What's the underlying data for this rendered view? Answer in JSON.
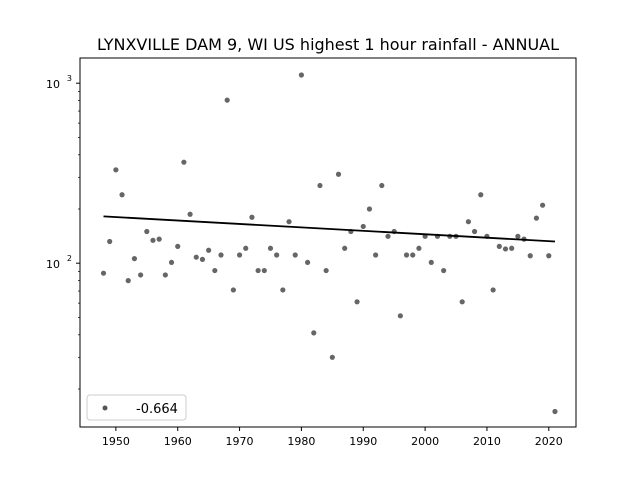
{
  "chart_data": {
    "type": "scatter",
    "title": "LYNXVILLE DAM 9, WI US highest 1 hour rainfall - ANNUAL",
    "xlabel": "",
    "ylabel": "",
    "yscale": "log",
    "xlim": [
      1944.2,
      2024.4
    ],
    "ylim": [
      12.3,
      1380
    ],
    "x_ticks": [
      1950,
      1960,
      1970,
      1980,
      1990,
      2000,
      2010,
      2020
    ],
    "x_tick_labels": [
      "1950",
      "1960",
      "1970",
      "1980",
      "1990",
      "2000",
      "2010",
      "2020"
    ],
    "y_ticks": [
      {
        "value": 100,
        "base": "10",
        "exp": "2"
      },
      {
        "value": 1000,
        "base": "10",
        "exp": "3"
      }
    ],
    "grid": false,
    "legend": {
      "placement": "lower-left",
      "entries": [
        "-0.664"
      ]
    },
    "series": [
      {
        "name": "-0.664",
        "color": "#555555",
        "x": [
          1948,
          1949,
          1950,
          1951,
          1952,
          1953,
          1954,
          1955,
          1956,
          1957,
          1958,
          1959,
          1960,
          1961,
          1962,
          1963,
          1964,
          1965,
          1966,
          1967,
          1968,
          1969,
          1970,
          1971,
          1972,
          1973,
          1974,
          1975,
          1976,
          1977,
          1978,
          1979,
          1980,
          1981,
          1982,
          1983,
          1984,
          1985,
          1986,
          1987,
          1988,
          1989,
          1990,
          1991,
          1992,
          1993,
          1994,
          1995,
          1996,
          1997,
          1998,
          1999,
          2000,
          2001,
          2002,
          2003,
          2004,
          2005,
          2006,
          2007,
          2008,
          2009,
          2010,
          2011,
          2012,
          2013,
          2014,
          2015,
          2016,
          2017,
          2018,
          2019,
          2020,
          2021
        ],
        "y": [
          88,
          132,
          330,
          240,
          80,
          106,
          86,
          150,
          134,
          136,
          86,
          101,
          124,
          364,
          187,
          108,
          105,
          118,
          91,
          111,
          805,
          71,
          111,
          121,
          180,
          91,
          91,
          121,
          111,
          71,
          170,
          111,
          1110,
          101,
          41,
          270,
          91,
          30,
          312,
          121,
          150,
          61,
          160,
          200,
          111,
          270,
          141,
          150,
          51,
          111,
          111,
          121,
          141,
          101,
          141,
          91,
          141,
          141,
          61,
          170,
          150,
          240,
          141,
          71,
          124,
          120,
          121,
          141,
          136,
          110,
          178,
          210,
          110,
          15
        ]
      }
    ],
    "trendline": {
      "x": [
        1948,
        2021
      ],
      "y": [
        182,
        132
      ],
      "color": "#000000"
    }
  }
}
